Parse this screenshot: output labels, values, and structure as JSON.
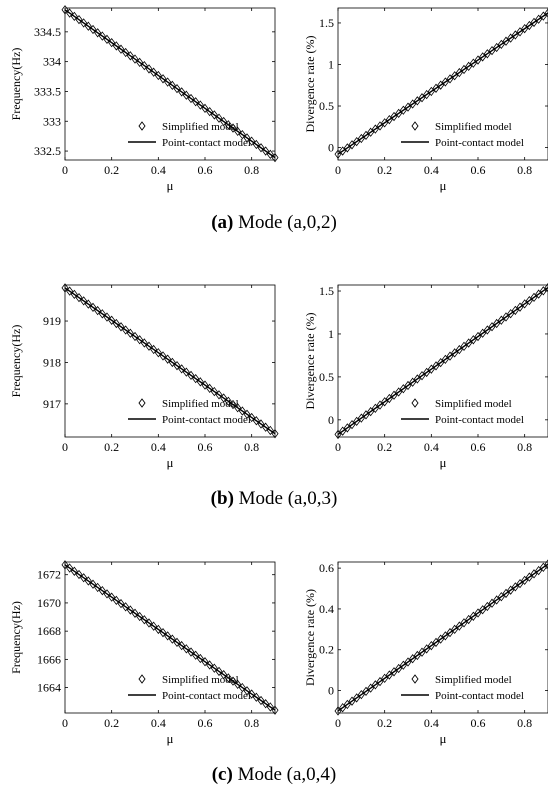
{
  "chart_data": [
    {
      "type": "line",
      "panel": "a-frequency",
      "xlabel": "μ",
      "ylabel": "Frequency(Hz)",
      "xlim": [
        0,
        0.9
      ],
      "ylim": [
        332.35,
        334.9
      ],
      "xticks": [
        "0",
        "0.2",
        "0.4",
        "0.6",
        "0.8"
      ],
      "xtick_values": [
        0,
        0.2,
        0.4,
        0.6,
        0.8
      ],
      "yticks": [
        "332.5",
        "333",
        "333.5",
        "334",
        "334.5"
      ],
      "ytick_values": [
        332.5,
        333,
        333.5,
        334,
        334.5
      ],
      "grid": false,
      "legend_position": "bottom-right",
      "series": [
        {
          "name": "Simplified model",
          "marker": "diamond",
          "x_start": 0,
          "x_end": 0.9,
          "y_start": 334.87,
          "y_end": 332.39,
          "n_points": 46
        },
        {
          "name": "Point-contact model",
          "marker": "line",
          "x": [
            0,
            0.9
          ],
          "y": [
            334.87,
            332.39
          ]
        }
      ]
    },
    {
      "type": "line",
      "panel": "a-divergence",
      "xlabel": "μ",
      "ylabel": "Divergence rate (%)",
      "xlim": [
        0,
        0.9
      ],
      "ylim": [
        -0.15,
        1.68
      ],
      "xticks": [
        "0",
        "0.2",
        "0.4",
        "0.6",
        "0.8"
      ],
      "xtick_values": [
        0,
        0.2,
        0.4,
        0.6,
        0.8
      ],
      "yticks": [
        "0",
        "0.5",
        "1",
        "1.5"
      ],
      "ytick_values": [
        0,
        0.5,
        1,
        1.5
      ],
      "grid": false,
      "legend_position": "bottom-right",
      "series": [
        {
          "name": "Simplified model",
          "marker": "diamond",
          "x_start": 0,
          "x_end": 0.9,
          "y_start": -0.08,
          "y_end": 1.62,
          "n_points": 46
        },
        {
          "name": "Point-contact model",
          "marker": "line",
          "x": [
            0,
            0.9
          ],
          "y": [
            -0.08,
            1.62
          ]
        }
      ]
    },
    {
      "type": "line",
      "panel": "b-frequency",
      "xlabel": "μ",
      "ylabel": "Frequency(Hz)",
      "xlim": [
        0,
        0.9
      ],
      "ylim": [
        916.2,
        919.87
      ],
      "xticks": [
        "0",
        "0.2",
        "0.4",
        "0.6",
        "0.8"
      ],
      "xtick_values": [
        0,
        0.2,
        0.4,
        0.6,
        0.8
      ],
      "yticks": [
        "917",
        "918",
        "919"
      ],
      "ytick_values": [
        917,
        918,
        919
      ],
      "grid": false,
      "legend_position": "bottom-right",
      "series": [
        {
          "name": "Simplified model",
          "marker": "diamond",
          "x_start": 0,
          "x_end": 0.9,
          "y_start": 919.8,
          "y_end": 916.28,
          "n_points": 46
        },
        {
          "name": "Point-contact model",
          "marker": "line",
          "x": [
            0,
            0.9
          ],
          "y": [
            919.8,
            916.28
          ]
        }
      ]
    },
    {
      "type": "line",
      "panel": "b-divergence",
      "xlabel": "μ",
      "ylabel": "Divergence rate (%)",
      "xlim": [
        0,
        0.9
      ],
      "ylim": [
        -0.2,
        1.57
      ],
      "xticks": [
        "0",
        "0.2",
        "0.4",
        "0.6",
        "0.8"
      ],
      "xtick_values": [
        0,
        0.2,
        0.4,
        0.6,
        0.8
      ],
      "yticks": [
        "0",
        "0.5",
        "1",
        "1.5"
      ],
      "ytick_values": [
        0,
        0.5,
        1,
        1.5
      ],
      "grid": false,
      "legend_position": "bottom-right",
      "series": [
        {
          "name": "Simplified model",
          "marker": "diamond",
          "x_start": 0,
          "x_end": 0.9,
          "y_start": -0.17,
          "y_end": 1.54,
          "n_points": 46
        },
        {
          "name": "Point-contact model",
          "marker": "line",
          "x": [
            0,
            0.9
          ],
          "y": [
            -0.17,
            1.54
          ]
        }
      ]
    },
    {
      "type": "line",
      "panel": "c-frequency",
      "xlabel": "μ",
      "ylabel": "Frequency(Hz)",
      "xlim": [
        0,
        0.9
      ],
      "ylim": [
        1662.2,
        1672.9
      ],
      "xticks": [
        "0",
        "0.2",
        "0.4",
        "0.6",
        "0.8"
      ],
      "xtick_values": [
        0,
        0.2,
        0.4,
        0.6,
        0.8
      ],
      "yticks": [
        "1664",
        "1666",
        "1668",
        "1670",
        "1672"
      ],
      "ytick_values": [
        1664,
        1666,
        1668,
        1670,
        1672
      ],
      "grid": false,
      "legend_position": "bottom-right",
      "series": [
        {
          "name": "Simplified model",
          "marker": "diamond",
          "x_start": 0,
          "x_end": 0.9,
          "y_start": 1672.7,
          "y_end": 1662.4,
          "n_points": 46
        },
        {
          "name": "Point-contact model",
          "marker": "line",
          "x": [
            0,
            0.9
          ],
          "y": [
            1672.7,
            1662.4
          ]
        }
      ]
    },
    {
      "type": "line",
      "panel": "c-divergence",
      "xlabel": "μ",
      "ylabel": "Divergence rate (%)",
      "xlim": [
        0,
        0.9
      ],
      "ylim": [
        -0.11,
        0.63
      ],
      "xticks": [
        "0",
        "0.2",
        "0.4",
        "0.6",
        "0.8"
      ],
      "xtick_values": [
        0,
        0.2,
        0.4,
        0.6,
        0.8
      ],
      "yticks": [
        "0",
        "0.2",
        "0.4",
        "0.6"
      ],
      "ytick_values": [
        0,
        0.2,
        0.4,
        0.6
      ],
      "grid": false,
      "legend_position": "bottom-right",
      "series": [
        {
          "name": "Simplified model",
          "marker": "diamond",
          "x_start": 0,
          "x_end": 0.9,
          "y_start": -0.1,
          "y_end": 0.62,
          "n_points": 46
        },
        {
          "name": "Point-contact model",
          "marker": "line",
          "x": [
            0,
            0.9
          ],
          "y": [
            -0.1,
            0.62
          ]
        }
      ]
    }
  ],
  "captions": [
    {
      "tag": "(a)",
      "text": " Mode (a,0,2)"
    },
    {
      "tag": "(b)",
      "text": " Mode (a,0,3)"
    },
    {
      "tag": "(c)",
      "text": " Mode (a,0,4)"
    }
  ]
}
